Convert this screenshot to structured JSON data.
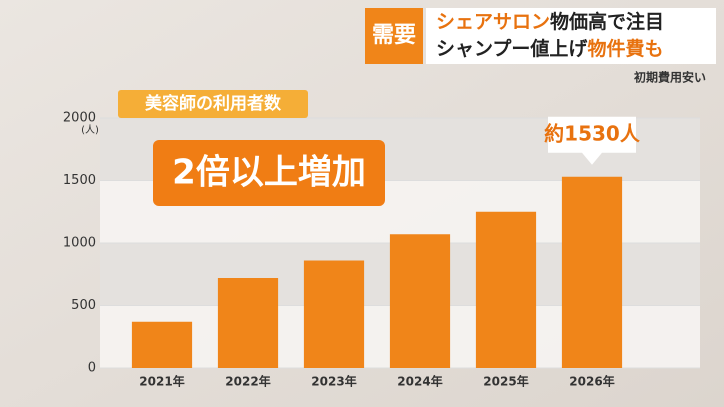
{
  "header": {
    "tag": "需要",
    "line1": [
      "シェアサロン",
      "物価高で注目"
    ],
    "line2": [
      "シャンプー値上げ",
      "物件費も"
    ],
    "note": "初期費用安い"
  },
  "chart_data": {
    "type": "bar",
    "title": "美容師の利用者数",
    "y_unit": "(人)",
    "annotation": "2倍以上増加",
    "categories": [
      "2021年",
      "2022年",
      "2023年",
      "2024年",
      "2025年",
      "2026年"
    ],
    "values": [
      370,
      720,
      860,
      1070,
      1250,
      1530
    ],
    "value_labels": [
      null,
      null,
      null,
      null,
      null,
      "約1530人"
    ],
    "color": "#f08519",
    "ylim": [
      0,
      2000
    ],
    "yticks": [
      0,
      500,
      1000,
      1500,
      2000
    ],
    "grid": true
  }
}
